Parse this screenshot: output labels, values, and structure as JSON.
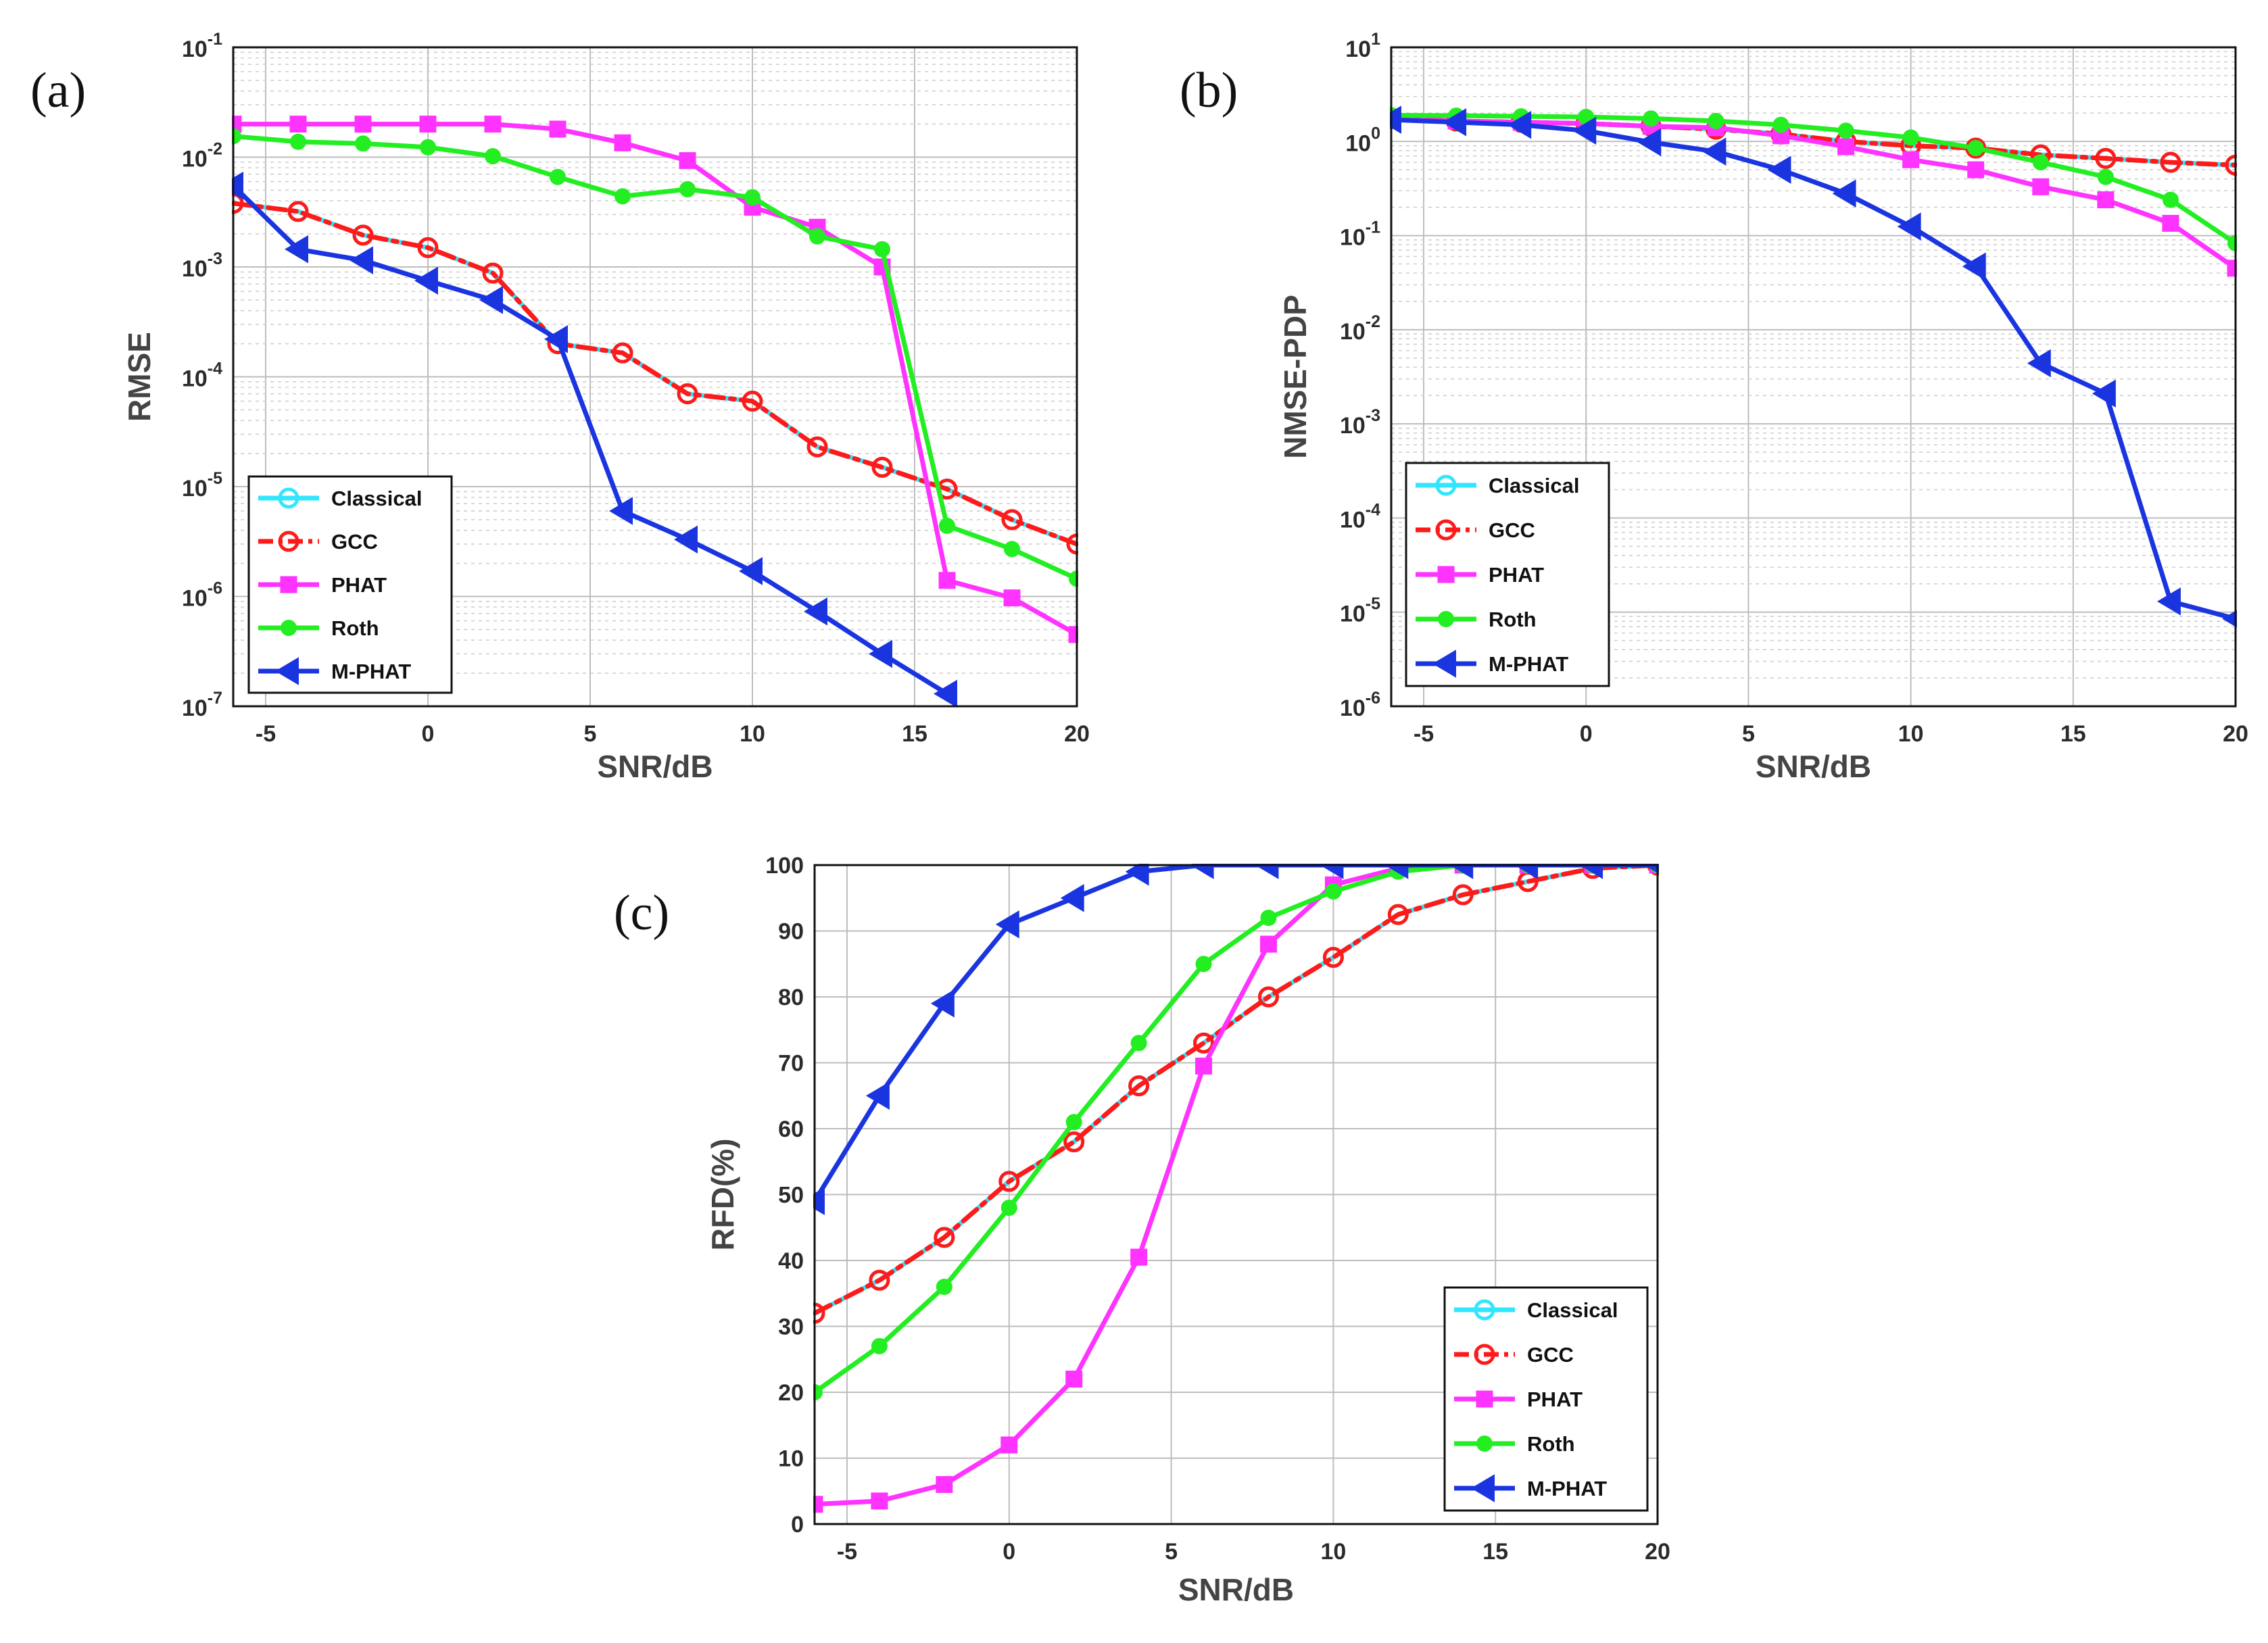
{
  "chart_data": [
    {
      "id": "a",
      "type": "line",
      "panel_label": "(a)",
      "xlabel": "SNR/dB",
      "ylabel": "RMSE",
      "yscale": "log",
      "xlim": [
        -6,
        20
      ],
      "ylim_exp": [
        -7,
        -1
      ],
      "xticks": [
        "-5",
        "0",
        "5",
        "10",
        "15",
        "20"
      ],
      "xtick_values": [
        -5,
        0,
        5,
        10,
        15,
        20
      ],
      "yticks": [
        {
          "base": "10",
          "exp": "-7"
        },
        {
          "base": "10",
          "exp": "-6"
        },
        {
          "base": "10",
          "exp": "-5"
        },
        {
          "base": "10",
          "exp": "-4"
        },
        {
          "base": "10",
          "exp": "-3"
        },
        {
          "base": "10",
          "exp": "-2"
        },
        {
          "base": "10",
          "exp": "-1"
        }
      ],
      "grid": "on (major and minor)",
      "legend_position": "bottom-left",
      "x": [
        -6,
        -4,
        -2,
        0,
        2,
        4,
        6,
        8,
        10,
        12,
        14,
        16,
        18,
        20
      ],
      "series": [
        {
          "name": "Classical",
          "color": "#33e6ff",
          "marker": "circle",
          "dash": "solid",
          "values": [
            0.0038,
            0.0032,
            0.00195,
            0.0015,
            0.00088,
            0.0002,
            0.000165,
            7e-05,
            6e-05,
            2.3e-05,
            1.5e-05,
            9.5e-06,
            5e-06,
            3e-06
          ]
        },
        {
          "name": "GCC",
          "color": "#ff1a1a",
          "marker": "circle",
          "dash": "dashdot",
          "values": [
            0.0038,
            0.0032,
            0.00195,
            0.0015,
            0.00088,
            0.0002,
            0.000165,
            7e-05,
            6e-05,
            2.3e-05,
            1.5e-05,
            9.5e-06,
            5e-06,
            3e-06
          ]
        },
        {
          "name": "PHAT",
          "color": "#ff33ff",
          "marker": "square",
          "dash": "solid",
          "values": [
            0.02,
            0.02,
            0.02,
            0.02,
            0.02,
            0.018,
            0.0135,
            0.0093,
            0.0035,
            0.0023,
            0.001,
            1.4e-06,
            9.7e-07,
            4.5e-07
          ]
        },
        {
          "name": "Roth",
          "color": "#22ee22",
          "marker": "dot",
          "dash": "solid",
          "values": [
            0.0155,
            0.0138,
            0.0133,
            0.0123,
            0.0102,
            0.0066,
            0.0044,
            0.0051,
            0.0043,
            0.0019,
            0.00145,
            4.4e-06,
            2.7e-06,
            1.45e-06
          ]
        },
        {
          "name": "M-PHAT",
          "color": "#1a35e0",
          "marker": "triangle-left",
          "dash": "solid",
          "values": [
            0.0055,
            0.00145,
            0.00115,
            0.00075,
            0.0005,
            0.00022,
            6e-06,
            3.3e-06,
            1.7e-06,
            7.3e-07,
            3e-07,
            1.3e-07,
            null,
            null
          ]
        }
      ]
    },
    {
      "id": "b",
      "type": "line",
      "panel_label": "(b)",
      "xlabel": "SNR/dB",
      "ylabel": "NMSE-PDP",
      "yscale": "log",
      "xlim": [
        -6,
        20
      ],
      "ylim_exp": [
        -6,
        1
      ],
      "xticks": [
        "-5",
        "0",
        "5",
        "10",
        "15",
        "20"
      ],
      "xtick_values": [
        -5,
        0,
        5,
        10,
        15,
        20
      ],
      "yticks": [
        {
          "base": "10",
          "exp": "-6"
        },
        {
          "base": "10",
          "exp": "-5"
        },
        {
          "base": "10",
          "exp": "-4"
        },
        {
          "base": "10",
          "exp": "-3"
        },
        {
          "base": "10",
          "exp": "-2"
        },
        {
          "base": "10",
          "exp": "-1"
        },
        {
          "base": "10",
          "exp": "0"
        },
        {
          "base": "10",
          "exp": "1"
        }
      ],
      "grid": "on (major and minor)",
      "legend_position": "bottom-left",
      "x": [
        -6,
        -4,
        -2,
        0,
        2,
        4,
        6,
        8,
        10,
        12,
        14,
        16,
        18,
        20
      ],
      "series": [
        {
          "name": "Classical",
          "color": "#33e6ff",
          "marker": "circle",
          "dash": "solid",
          "values": [
            1.75,
            1.65,
            1.6,
            1.55,
            1.45,
            1.35,
            1.2,
            1.0,
            0.9,
            0.85,
            0.72,
            0.66,
            0.6,
            0.56
          ]
        },
        {
          "name": "GCC",
          "color": "#ff1a1a",
          "marker": "circle",
          "dash": "dashdot",
          "values": [
            1.75,
            1.65,
            1.6,
            1.55,
            1.45,
            1.35,
            1.2,
            1.0,
            0.9,
            0.85,
            0.72,
            0.66,
            0.6,
            0.56
          ]
        },
        {
          "name": "PHAT",
          "color": "#ff33ff",
          "marker": "square",
          "dash": "solid",
          "values": [
            1.7,
            1.65,
            1.6,
            1.55,
            1.45,
            1.4,
            1.15,
            0.88,
            0.64,
            0.5,
            0.33,
            0.24,
            0.135,
            0.045
          ]
        },
        {
          "name": "Roth",
          "color": "#22ee22",
          "marker": "dot",
          "dash": "solid",
          "values": [
            1.9,
            1.88,
            1.85,
            1.82,
            1.75,
            1.65,
            1.5,
            1.3,
            1.1,
            0.85,
            0.6,
            0.42,
            0.24,
            0.083
          ]
        },
        {
          "name": "M-PHAT",
          "color": "#1a35e0",
          "marker": "triangle-left",
          "dash": "solid",
          "values": [
            1.7,
            1.6,
            1.5,
            1.3,
            0.98,
            0.78,
            0.5,
            0.28,
            0.125,
            0.047,
            0.0044,
            0.0021,
            1.3e-05,
            8.5e-06
          ]
        }
      ]
    },
    {
      "id": "c",
      "type": "line",
      "panel_label": "(c)",
      "xlabel": "SNR/dB",
      "ylabel": "RFD(%)",
      "yscale": "linear",
      "xlim": [
        -6,
        20
      ],
      "ylim": [
        0,
        100
      ],
      "xticks": [
        "-5",
        "0",
        "5",
        "10",
        "15",
        "20"
      ],
      "xtick_values": [
        -5,
        0,
        5,
        10,
        15,
        20
      ],
      "yticks": [
        "0",
        "10",
        "20",
        "30",
        "40",
        "50",
        "60",
        "70",
        "80",
        "90",
        "100"
      ],
      "ytick_values": [
        0,
        10,
        20,
        30,
        40,
        50,
        60,
        70,
        80,
        90,
        100
      ],
      "grid": "on (major)",
      "legend_position": "bottom-right",
      "x": [
        -6,
        -4,
        -2,
        0,
        2,
        4,
        6,
        8,
        10,
        12,
        14,
        16,
        18,
        20
      ],
      "series": [
        {
          "name": "Classical",
          "color": "#33e6ff",
          "marker": "circle",
          "dash": "solid",
          "values": [
            32,
            37,
            43.5,
            52,
            58,
            66.5,
            73,
            80,
            86,
            92.5,
            95.5,
            97.5,
            99.5,
            100
          ]
        },
        {
          "name": "GCC",
          "color": "#ff1a1a",
          "marker": "circle",
          "dash": "dashdot",
          "values": [
            32,
            37,
            43.5,
            52,
            58,
            66.5,
            73,
            80,
            86,
            92.5,
            95.5,
            97.5,
            99.5,
            100
          ]
        },
        {
          "name": "PHAT",
          "color": "#ff33ff",
          "marker": "square",
          "dash": "solid",
          "values": [
            3,
            3.5,
            6,
            12,
            22,
            40.5,
            69.5,
            88,
            97,
            99.5,
            100,
            100,
            100,
            100
          ]
        },
        {
          "name": "Roth",
          "color": "#22ee22",
          "marker": "dot",
          "dash": "solid",
          "values": [
            20,
            27,
            36,
            48,
            61,
            73,
            85,
            92,
            96,
            99,
            100,
            100,
            100,
            100
          ]
        },
        {
          "name": "M-PHAT",
          "color": "#1a35e0",
          "marker": "triangle-left",
          "dash": "solid",
          "values": [
            49,
            65,
            79,
            91,
            95,
            99,
            100,
            100,
            100,
            100,
            100,
            100,
            100,
            100
          ]
        }
      ]
    }
  ]
}
